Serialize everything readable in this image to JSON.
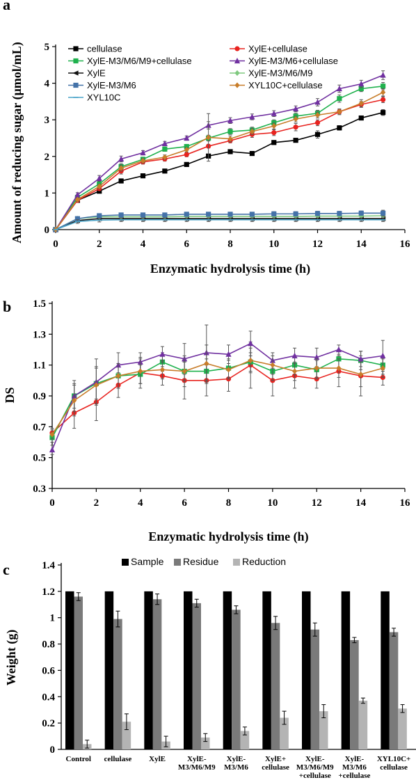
{
  "chart_data": [
    {
      "panel": "a",
      "type": "line",
      "xlabel": "Enzymatic hydrolysis time (h)",
      "ylabel": "Amount of reducing sugar (μmol/mL)",
      "xlim": [
        0,
        16
      ],
      "ylim": [
        0,
        5
      ],
      "xticks": [
        "0",
        "2",
        "4",
        "6",
        "8",
        "10",
        "12",
        "14",
        "16"
      ],
      "yticks": [
        "0",
        "1",
        "2",
        "3",
        "4",
        "5"
      ],
      "legend": "top, two columns",
      "grid": false,
      "x": [
        0,
        1,
        2,
        3,
        4,
        5,
        6,
        7,
        8,
        9,
        10,
        11,
        12,
        13,
        14,
        15
      ],
      "series": [
        {
          "name": "cellulase",
          "color": "#000000",
          "marker": "square",
          "values": [
            0,
            0.8,
            1.05,
            1.33,
            1.47,
            1.6,
            1.78,
            2.01,
            2.13,
            2.08,
            2.38,
            2.44,
            2.6,
            2.78,
            3.05,
            3.2
          ],
          "errors": [
            0,
            0.05,
            0.05,
            0.05,
            0.05,
            0.05,
            0.05,
            0.05,
            0.05,
            0.05,
            0.05,
            0.05,
            0.1,
            0.06,
            0.05,
            0.08
          ]
        },
        {
          "name": "XylE+cellulase",
          "color": "#e8231f",
          "marker": "circle",
          "values": [
            0,
            0.8,
            1.12,
            1.6,
            1.85,
            1.93,
            2.05,
            2.28,
            2.43,
            2.6,
            2.65,
            2.8,
            2.92,
            3.22,
            3.42,
            3.55
          ],
          "errors": [
            0,
            0.05,
            0.05,
            0.08,
            0.06,
            0.06,
            0.06,
            0.05,
            0.06,
            0.08,
            0.08,
            0.1,
            0.08,
            0.06,
            0.08,
            0.08
          ]
        },
        {
          "name": "XylE-M3/M6/M9+cellulase",
          "color": "#1fb14d",
          "marker": "square",
          "values": [
            0,
            0.88,
            1.25,
            1.72,
            1.92,
            2.2,
            2.27,
            2.5,
            2.68,
            2.72,
            2.92,
            3.1,
            3.18,
            3.58,
            3.85,
            3.92
          ],
          "errors": [
            0,
            0.06,
            0.08,
            0.08,
            0.06,
            0.06,
            0.06,
            0.08,
            0.08,
            0.08,
            0.08,
            0.08,
            0.08,
            0.1,
            0.08,
            0.1
          ]
        },
        {
          "name": "XylE-M3/M6+cellulase",
          "color": "#7030a0",
          "marker": "triangle",
          "values": [
            0,
            0.95,
            1.4,
            1.93,
            2.1,
            2.35,
            2.5,
            2.85,
            2.98,
            3.08,
            3.17,
            3.3,
            3.48,
            3.85,
            3.98,
            4.22
          ],
          "errors": [
            0,
            0.06,
            0.08,
            0.08,
            0.06,
            0.06,
            0.06,
            0.1,
            0.08,
            0.08,
            0.08,
            0.08,
            0.1,
            0.1,
            0.1,
            0.12
          ]
        },
        {
          "name": "XylE",
          "color": "#111111",
          "marker": "tri-left",
          "values": [
            0,
            0.25,
            0.3,
            0.3,
            0.3,
            0.3,
            0.3,
            0.3,
            0.3,
            0.3,
            0.3,
            0.3,
            0.3,
            0.3,
            0.3,
            0.3
          ],
          "errors": [
            0,
            0.05,
            0.05,
            0.05,
            0.05,
            0.05,
            0.05,
            0.05,
            0.05,
            0.05,
            0.05,
            0.05,
            0.05,
            0.05,
            0.05,
            0.05
          ]
        },
        {
          "name": "XylE-M3/M6/M9",
          "color": "#7fc97f",
          "marker": "diamond",
          "values": [
            0,
            0.3,
            0.35,
            0.35,
            0.35,
            0.35,
            0.36,
            0.36,
            0.36,
            0.36,
            0.36,
            0.36,
            0.37,
            0.37,
            0.37,
            0.38
          ],
          "errors": [
            0,
            0.05,
            0.05,
            0.05,
            0.05,
            0.05,
            0.05,
            0.05,
            0.05,
            0.05,
            0.05,
            0.05,
            0.05,
            0.05,
            0.05,
            0.05
          ]
        },
        {
          "name": "XylE-M3/M6",
          "color": "#4472a8",
          "marker": "square",
          "values": [
            0,
            0.3,
            0.38,
            0.4,
            0.4,
            0.4,
            0.42,
            0.42,
            0.42,
            0.42,
            0.43,
            0.43,
            0.44,
            0.44,
            0.45,
            0.45
          ],
          "errors": [
            0,
            0.05,
            0.05,
            0.05,
            0.05,
            0.05,
            0.05,
            0.05,
            0.05,
            0.05,
            0.06,
            0.06,
            0.06,
            0.06,
            0.06,
            0.08
          ]
        },
        {
          "name": "XYL10C+cellulase",
          "color": "#c87d2a",
          "marker": "diamond",
          "values": [
            0,
            0.82,
            1.18,
            1.68,
            1.88,
            1.98,
            2.18,
            2.52,
            2.48,
            2.68,
            2.83,
            3.02,
            3.13,
            3.22,
            3.45,
            3.75
          ],
          "errors": [
            0,
            0.05,
            0.06,
            0.08,
            0.06,
            0.06,
            0.06,
            0.65,
            0.08,
            0.08,
            0.08,
            0.08,
            0.08,
            0.08,
            0.1,
            0.1
          ]
        },
        {
          "name": "XYL10C",
          "color": "#4aa3c8",
          "marker": "line",
          "values": [
            0,
            0.22,
            0.26,
            0.27,
            0.27,
            0.27,
            0.27,
            0.27,
            0.27,
            0.27,
            0.27,
            0.27,
            0.27,
            0.27,
            0.27,
            0.27
          ],
          "errors": [
            0,
            0.05,
            0.05,
            0.05,
            0.05,
            0.05,
            0.05,
            0.05,
            0.05,
            0.05,
            0.05,
            0.05,
            0.05,
            0.05,
            0.05,
            0.05
          ]
        }
      ]
    },
    {
      "panel": "b",
      "type": "line",
      "xlabel": "Enzymatic hydrolysis time (h)",
      "ylabel": "DS",
      "xlim": [
        0,
        16
      ],
      "ylim": [
        0.3,
        1.5
      ],
      "xticks": [
        "0",
        "2",
        "4",
        "6",
        "8",
        "10",
        "12",
        "14",
        "16"
      ],
      "yticks": [
        "0.3",
        "0.5",
        "0.7",
        "0.9",
        "1.1",
        "1.3",
        "1.5"
      ],
      "grid": false,
      "x": [
        0,
        1,
        2,
        3,
        4,
        5,
        6,
        7,
        8,
        9,
        10,
        11,
        12,
        13,
        14,
        15
      ],
      "series": [
        {
          "color": "#e8231f",
          "marker": "circle",
          "values": [
            0.66,
            0.79,
            0.86,
            0.97,
            1.05,
            1.03,
            1.0,
            1.0,
            1.01,
            1.1,
            1.0,
            1.03,
            1.01,
            1.06,
            1.03,
            1.02
          ],
          "errors": [
            0.03,
            0.1,
            0.12,
            0.08,
            0.1,
            0.06,
            0.12,
            0.1,
            0.08,
            0.15,
            0.1,
            0.08,
            0.06,
            0.1,
            0.13,
            0.05
          ]
        },
        {
          "color": "#1fb14d",
          "marker": "square",
          "values": [
            0.63,
            0.9,
            0.98,
            1.03,
            1.04,
            1.12,
            1.06,
            1.06,
            1.08,
            1.12,
            1.06,
            1.1,
            1.07,
            1.14,
            1.13,
            1.1
          ],
          "errors": [
            0.03,
            0.08,
            0.1,
            0.08,
            0.06,
            0.06,
            0.06,
            0.08,
            0.06,
            0.06,
            0.06,
            0.06,
            0.06,
            0.06,
            0.06,
            0.06
          ]
        },
        {
          "color": "#7030a0",
          "marker": "triangle",
          "values": [
            0.55,
            0.9,
            0.99,
            1.1,
            1.12,
            1.17,
            1.14,
            1.18,
            1.17,
            1.24,
            1.13,
            1.16,
            1.15,
            1.2,
            1.14,
            1.16
          ],
          "errors": [
            0.03,
            0.1,
            0.15,
            0.08,
            0.06,
            0.05,
            0.1,
            0.18,
            0.06,
            0.08,
            0.05,
            0.05,
            0.06,
            0.03,
            0.05,
            0.1
          ]
        },
        {
          "color": "#c87d2a",
          "marker": "diamond",
          "values": [
            0.65,
            0.87,
            0.97,
            1.03,
            1.06,
            1.07,
            1.06,
            1.11,
            1.07,
            1.13,
            1.1,
            1.06,
            1.08,
            1.08,
            1.04,
            1.08
          ],
          "errors": [
            0.03,
            0.1,
            0.12,
            0.08,
            0.08,
            0.06,
            0.1,
            0.12,
            0.06,
            0.08,
            0.06,
            0.06,
            0.06,
            0.06,
            0.08,
            0.06
          ]
        }
      ]
    },
    {
      "panel": "c",
      "type": "bar",
      "ylabel": "Weight (g)",
      "ylim": [
        0,
        1.4
      ],
      "yticks": [
        "0",
        "0.2",
        "0.4",
        "0.6",
        "0.8",
        "1",
        "1.2",
        "1.4"
      ],
      "legend": "top",
      "categories": [
        [
          "Control"
        ],
        [
          "cellulase"
        ],
        [
          "XylE"
        ],
        [
          "XylE-",
          "M3/M6/M9"
        ],
        [
          "XylE-",
          "M3/M6"
        ],
        [
          "XylE+",
          "cellulase"
        ],
        [
          "XylE-",
          "M3/M6/M9",
          "+cellulase"
        ],
        [
          "XylE-",
          "M3/M6",
          "+cellulase"
        ],
        [
          "XYL10C+",
          "cellulase"
        ]
      ],
      "series": [
        {
          "name": "Sample",
          "color": "#000000",
          "values": [
            1.2,
            1.2,
            1.2,
            1.2,
            1.2,
            1.2,
            1.2,
            1.2,
            1.2
          ],
          "errors": [
            0,
            0,
            0,
            0,
            0,
            0,
            0,
            0,
            0
          ]
        },
        {
          "name": "Residue",
          "color": "#7a7a7a",
          "values": [
            1.16,
            0.99,
            1.14,
            1.11,
            1.06,
            0.96,
            0.91,
            0.83,
            0.89
          ],
          "errors": [
            0.03,
            0.06,
            0.04,
            0.03,
            0.03,
            0.05,
            0.05,
            0.02,
            0.03
          ]
        },
        {
          "name": "Reduction",
          "color": "#b4b4b4",
          "values": [
            0.04,
            0.21,
            0.06,
            0.09,
            0.14,
            0.24,
            0.29,
            0.37,
            0.31
          ],
          "errors": [
            0.03,
            0.06,
            0.04,
            0.03,
            0.03,
            0.05,
            0.05,
            0.02,
            0.03
          ]
        }
      ]
    }
  ]
}
